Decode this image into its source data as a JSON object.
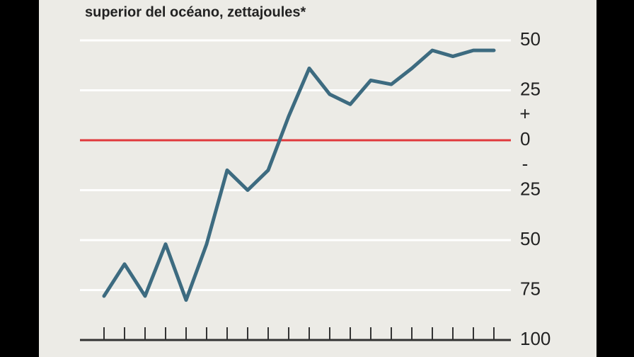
{
  "chart_data": {
    "type": "line",
    "title": "superior del océano, zettajoules*",
    "categories": [
      null,
      null,
      null,
      null,
      null,
      null,
      null,
      null,
      null,
      null,
      null,
      null,
      null,
      null,
      null,
      null,
      null,
      null,
      null,
      null
    ],
    "series": [
      {
        "color": "#3d6b80",
        "values": [
          -78,
          -62,
          -78,
          -52,
          -80,
          -52,
          -15,
          -25,
          -15,
          12,
          36,
          23,
          18,
          30,
          28,
          36,
          45,
          42,
          45,
          45
        ]
      }
    ],
    "ylim": [
      -100,
      50
    ],
    "yticks": [
      50,
      25,
      0,
      {
        "value": -25,
        "label": "25"
      },
      {
        "value": -50,
        "label": "50"
      },
      {
        "value": -75,
        "label": "75"
      },
      {
        "value": -100,
        "label": "100"
      }
    ],
    "grid": true,
    "grid_color": "#ffffff",
    "zero_line_color": "#e0383c",
    "baseline_color": "#333333",
    "y_axis_side": "right",
    "annotations": [
      {
        "text": "+",
        "value": 12.5
      },
      {
        "text": "-",
        "value": -12.5
      }
    ]
  }
}
